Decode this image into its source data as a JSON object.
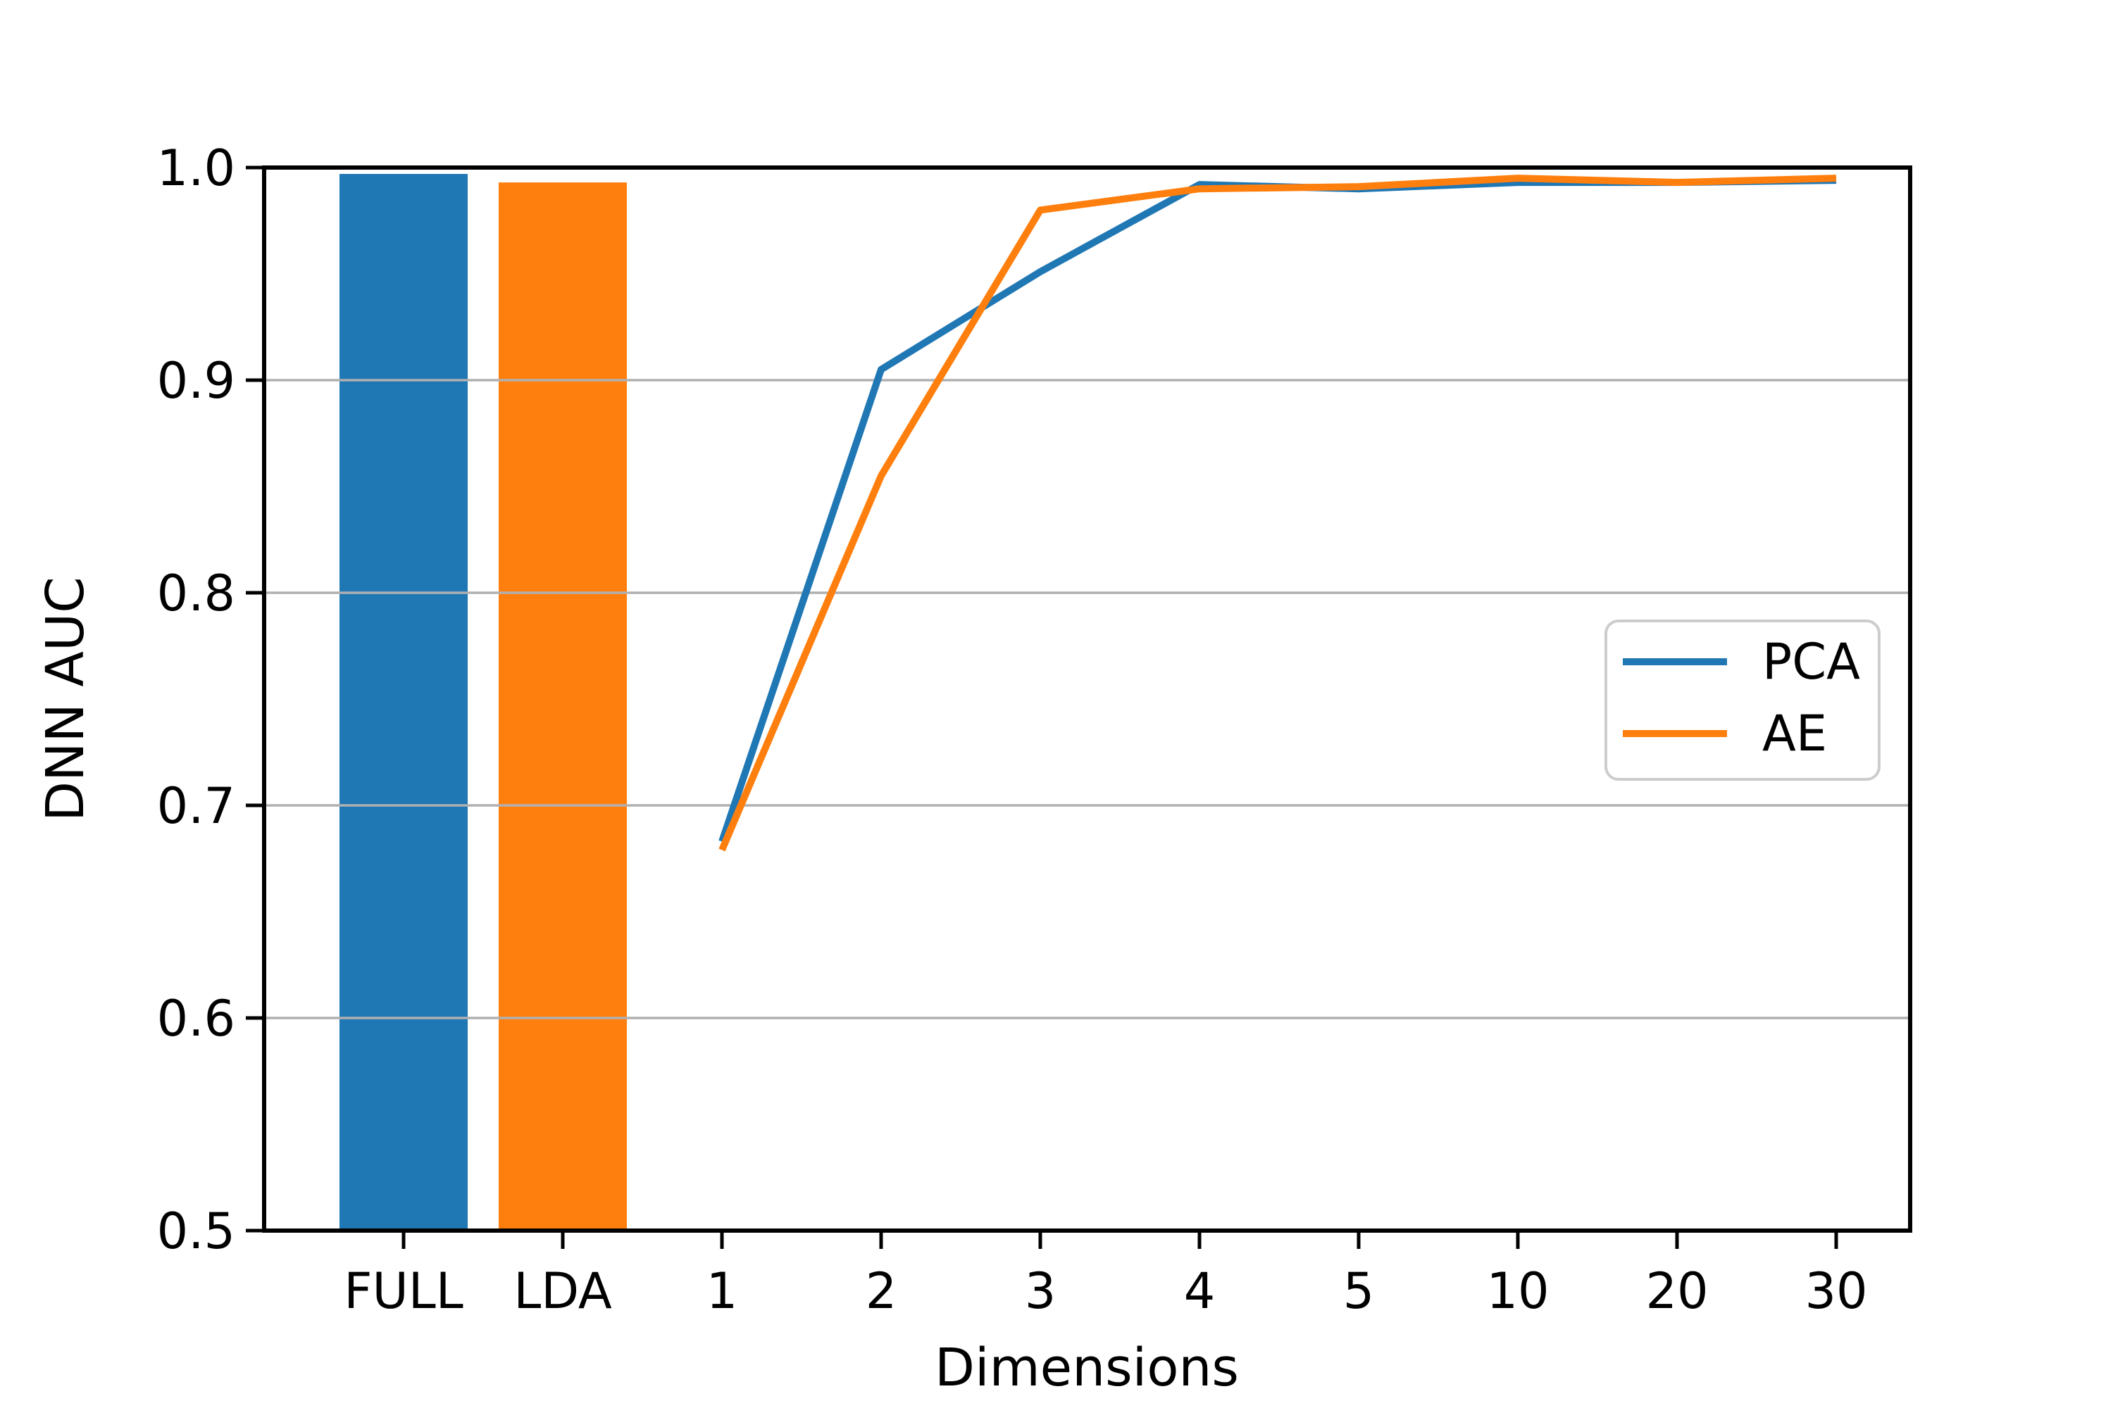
{
  "chart_data": {
    "type": "bar+line composite",
    "title": "",
    "xlabel": "Dimensions",
    "ylabel": "DNN AUC",
    "ylim": [
      0.5,
      1.0
    ],
    "yticks": [
      1.0,
      0.9,
      0.8,
      0.7,
      0.6,
      0.5
    ],
    "grid": true,
    "grid_color": "#b0b0b0",
    "background_color": "#ffffff",
    "spine_color": "#000000",
    "categories": [
      "FULL",
      "LDA",
      "1",
      "2",
      "3",
      "4",
      "5",
      "10",
      "20",
      "30"
    ],
    "bars": [
      {
        "category": "FULL",
        "value": 0.997,
        "color": "#1f77b4"
      },
      {
        "category": "LDA",
        "value": 0.993,
        "color": "#ff7f0e"
      }
    ],
    "series": [
      {
        "name": "PCA",
        "color": "#1f77b4",
        "x": [
          "1",
          "2",
          "3",
          "4",
          "5",
          "10",
          "20",
          "30"
        ],
        "values": [
          0.683,
          0.905,
          0.951,
          0.992,
          0.99,
          0.993,
          0.993,
          0.994
        ]
      },
      {
        "name": "AE",
        "color": "#ff7f0e",
        "x": [
          "1",
          "2",
          "3",
          "4",
          "5",
          "10",
          "20",
          "30"
        ],
        "values": [
          0.679,
          0.855,
          0.98,
          0.99,
          0.991,
          0.995,
          0.993,
          0.995
        ]
      }
    ],
    "legend": {
      "position": "center right",
      "entries": [
        "PCA",
        "AE"
      ],
      "border_color": "#cccccc",
      "background": "#ffffff"
    }
  }
}
